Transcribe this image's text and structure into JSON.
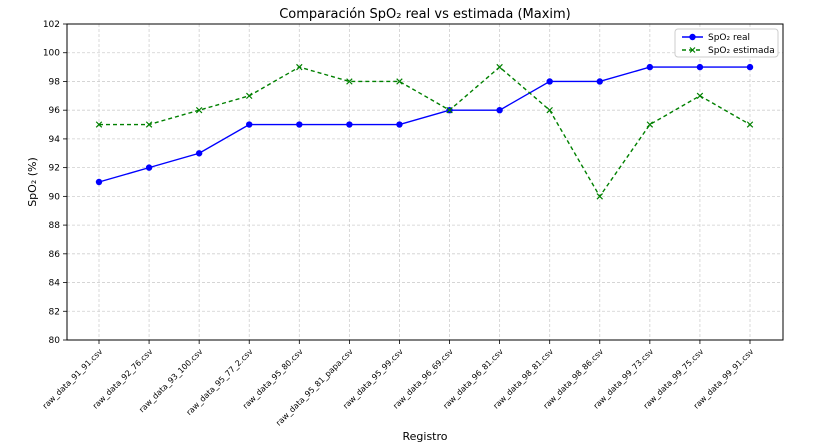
{
  "chart_data": {
    "type": "line",
    "title": "Comparación SpO₂ real vs estimada (Maxim)",
    "xlabel": "Registro",
    "ylabel": "SpO₂ (%)",
    "ylim": [
      80,
      102
    ],
    "yticks": [
      80,
      82,
      84,
      86,
      88,
      90,
      92,
      94,
      96,
      98,
      100,
      102
    ],
    "grid": true,
    "legend_position": "top-right",
    "categories": [
      "raw_data_91_91.csv",
      "raw_data_92_76.csv",
      "raw_data_93_100.csv",
      "raw_data_95_77_2.csv",
      "raw_data_95_80.csv",
      "raw_data_95_81_papa.csv",
      "raw_data_95_99.csv",
      "raw_data_96_69.csv",
      "raw_data_96_81.csv",
      "raw_data_98_81.csv",
      "raw_data_98_86.csv",
      "raw_data_99_73.csv",
      "raw_data_99_75.csv",
      "raw_data_99_91.csv"
    ],
    "series": [
      {
        "name": "SpO₂ real",
        "values": [
          91,
          92,
          93,
          95,
          95,
          95,
          95,
          96,
          96,
          98,
          98,
          99,
          99,
          99
        ],
        "color": "#0000ff",
        "line_style": "solid",
        "marker": "circle"
      },
      {
        "name": "SpO₂ estimada",
        "values": [
          95,
          95,
          96,
          97,
          99,
          98,
          98,
          96,
          99,
          96,
          90,
          95,
          97,
          95
        ],
        "color": "#008000",
        "line_style": "dashed",
        "marker": "x"
      }
    ]
  }
}
